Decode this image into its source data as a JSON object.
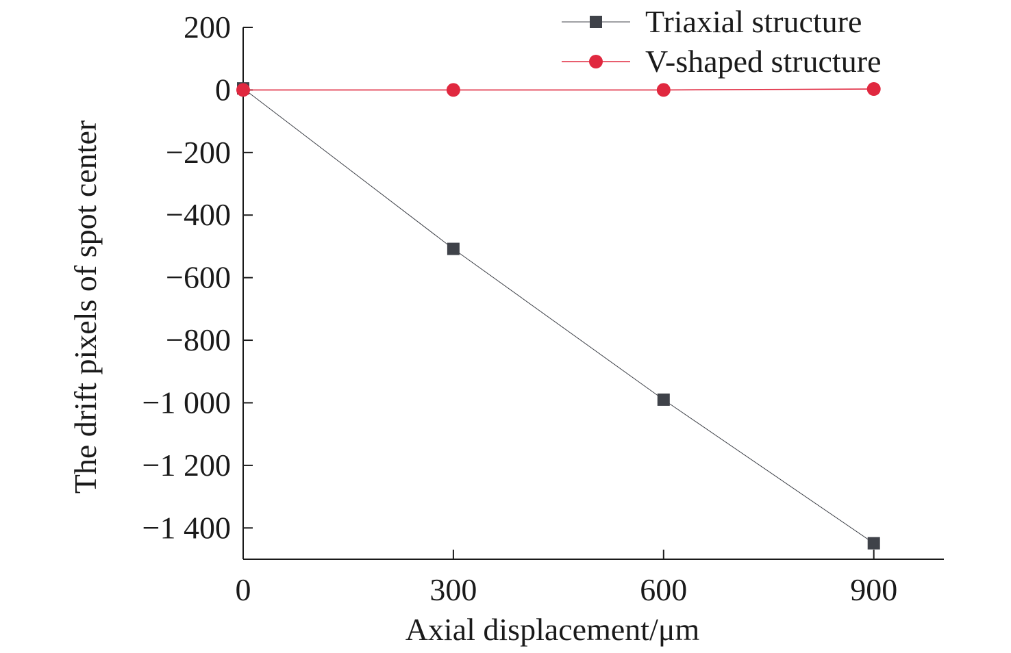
{
  "colors": {
    "triaxial": "#3f4249",
    "vshaped": "#e0283f",
    "axis": "#1a1a1a"
  },
  "chart_data": {
    "type": "line",
    "xlabel": "Axial displacement/μm",
    "ylabel": "The drift pixels of spot center",
    "xlim": [
      0,
      1000
    ],
    "ylim": [
      -1500,
      200
    ],
    "x_ticks": [
      0,
      300,
      600,
      900
    ],
    "x_tick_labels": [
      "0",
      "300",
      "600",
      "900"
    ],
    "y_ticks": [
      200,
      0,
      -200,
      -400,
      -600,
      -800,
      -1000,
      -1200,
      -1400
    ],
    "y_tick_labels": [
      "200",
      "0",
      "−200",
      "−400",
      "−600",
      "−800",
      "−1 000",
      "−1 200",
      "−1 400"
    ],
    "legend_position": "top-right",
    "grid": false,
    "x": [
      0,
      300,
      600,
      900
    ],
    "series": [
      {
        "name": "Triaxial structure",
        "marker": "square",
        "color": "#3f4249",
        "values": [
          5,
          -508,
          -990,
          -1449
        ]
      },
      {
        "name": "V-shaped structure",
        "marker": "circle",
        "color": "#e0283f",
        "values": [
          0,
          0,
          0,
          3
        ]
      }
    ]
  }
}
